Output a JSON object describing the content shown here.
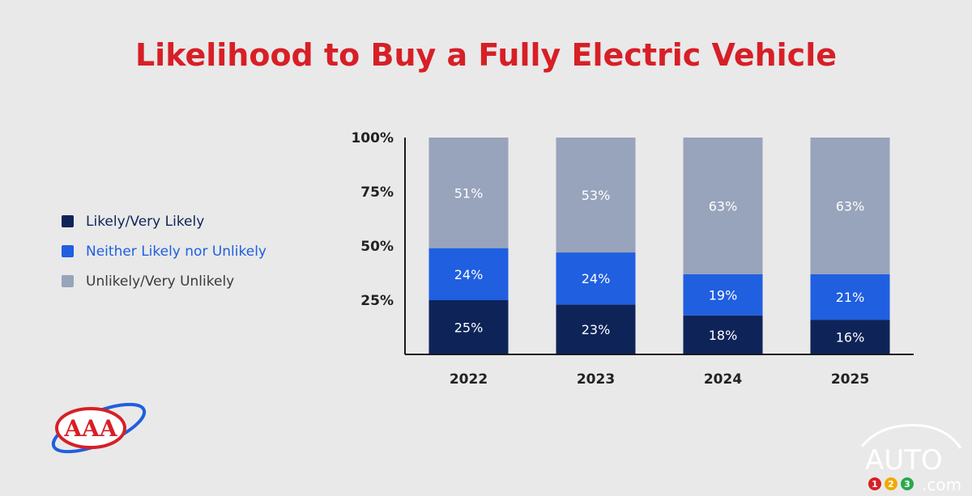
{
  "header": {
    "title": "Likelihood to Buy a Fully Electric Vehicle"
  },
  "legend": {
    "items": [
      {
        "label": "Likely/Very Likely",
        "color": "#0e2459",
        "text_color": "#0e2459"
      },
      {
        "label": "Neither Likely nor Unlikely",
        "color": "#1f5fe0",
        "text_color": "#1f5fe0"
      },
      {
        "label": "Unlikely/Very Unlikely",
        "color": "#98a3bc",
        "text_color": "#3a3a3a"
      }
    ]
  },
  "chart_data": {
    "type": "bar",
    "stacked": true,
    "title": "Likelihood to Buy a Fully Electric Vehicle",
    "categories": [
      "2022",
      "2023",
      "2024",
      "2025"
    ],
    "series": [
      {
        "name": "Likely/Very Likely",
        "values": [
          25,
          23,
          18,
          16
        ],
        "labels": [
          "25%",
          "23%",
          "18%",
          "16%"
        ],
        "color": "#0e2459"
      },
      {
        "name": "Neither Likely nor Unlikely",
        "values": [
          24,
          24,
          19,
          21
        ],
        "labels": [
          "24%",
          "24%",
          "19%",
          "21%"
        ],
        "color": "#1f5fe0"
      },
      {
        "name": "Unlikely/Very Unlikely",
        "values": [
          51,
          53,
          63,
          63
        ],
        "labels": [
          "51%",
          "53%",
          "63%",
          "63%"
        ],
        "color": "#98a3bc"
      }
    ],
    "y_ticks": [
      "25%",
      "50%",
      "75%",
      "100%"
    ],
    "ylim": [
      0,
      100
    ],
    "grid": false,
    "legend_position": "left"
  },
  "logos": {
    "aaa": {
      "text": "AAA",
      "color": "#d71f26",
      "ring_color": "#1f5fe0"
    },
    "auto123": {
      "text": "AUTO",
      "suffix": ".com",
      "digits": [
        "1",
        "2",
        "3"
      ],
      "digit_colors": [
        "#d71f26",
        "#f2a900",
        "#2aa84a"
      ]
    }
  }
}
